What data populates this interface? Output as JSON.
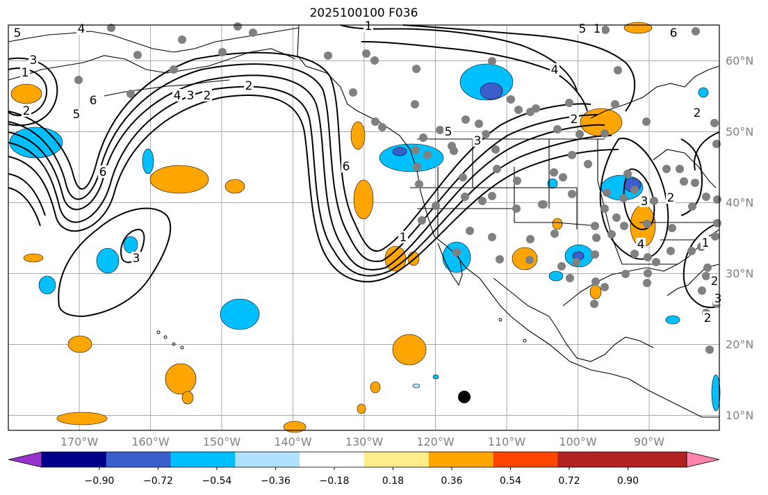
{
  "title": "2025100100 F036",
  "lat_ticks": [
    {
      "value": 60,
      "label": "60°N"
    },
    {
      "value": 50,
      "label": "50°N"
    },
    {
      "value": 40,
      "label": "40°N"
    },
    {
      "value": 30,
      "label": "30°N"
    },
    {
      "value": 20,
      "label": "20°N"
    },
    {
      "value": 10,
      "label": "10°N"
    }
  ],
  "lon_ticks": [
    {
      "value": -170,
      "label": "170°W"
    },
    {
      "value": -160,
      "label": "160°W"
    },
    {
      "value": -150,
      "label": "150°W"
    },
    {
      "value": -140,
      "label": "140°W"
    },
    {
      "value": -130,
      "label": "130°W"
    },
    {
      "value": -120,
      "label": "120°W"
    },
    {
      "value": -110,
      "label": "110°W"
    },
    {
      "value": -100,
      "label": "100°W"
    },
    {
      "value": -90,
      "label": "90°W"
    }
  ],
  "colorbar": {
    "colors": [
      "#9932cc",
      "#00008b",
      "#3a5fcd",
      "#00bfff",
      "#b0e2ff",
      "#ffffff",
      "#ffec8b",
      "#ffa500",
      "#ff4500",
      "#b22222",
      "#ff82ab"
    ],
    "tick_labels": [
      "−0.90",
      "−0.72",
      "−0.54",
      "−0.36",
      "−0.18",
      "0.18",
      "0.36",
      "0.54",
      "0.72",
      "0.90"
    ]
  },
  "contour_labels": [
    "5",
    "4",
    "3",
    "1",
    "2",
    "6",
    "5",
    "4",
    "3",
    "2",
    "6",
    "6",
    "2",
    "1",
    "5",
    "3",
    "4",
    "2",
    "1",
    "5",
    "4",
    "6",
    "3",
    "2",
    "3",
    "2",
    "1",
    "2",
    "3",
    "2",
    "1"
  ],
  "colors": {
    "contour": "#000000",
    "grid": "#a9a9a9",
    "station": "#808080",
    "marker": "#000000"
  }
}
